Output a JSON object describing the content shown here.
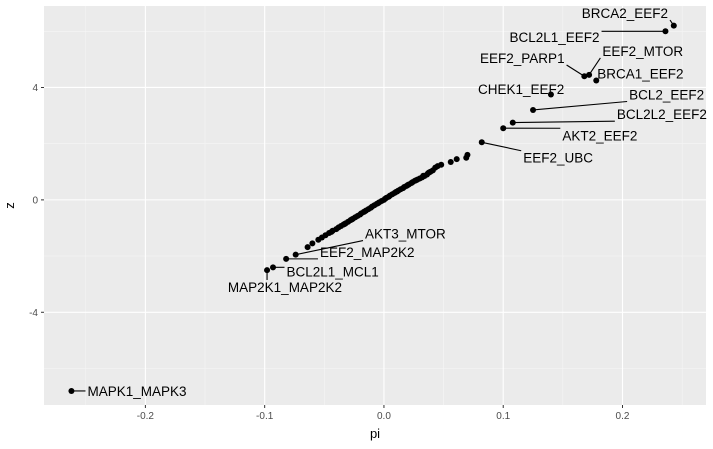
{
  "chart_data": {
    "type": "scatter",
    "xlabel": "pi",
    "ylabel": "z",
    "xlim": [
      -0.285,
      0.27
    ],
    "ylim": [
      -7.3,
      6.9
    ],
    "x_ticks": [
      {
        "value": -0.2,
        "label": "-0.2"
      },
      {
        "value": -0.1,
        "label": "-0.1"
      },
      {
        "value": 0.0,
        "label": "0.0"
      },
      {
        "value": 0.1,
        "label": "0.1"
      },
      {
        "value": 0.2,
        "label": "0.2"
      }
    ],
    "y_ticks": [
      {
        "value": -4,
        "label": "-4"
      },
      {
        "value": 0,
        "label": "0"
      },
      {
        "value": 4,
        "label": "4"
      }
    ],
    "grid": true,
    "colors": {
      "panel": "#ebebeb",
      "grid_major": "#ffffff",
      "grid_minor": "#f5f5f5",
      "point": "#000000"
    },
    "labeled_points": [
      {
        "name": "BRCA2_EEF2",
        "x": 0.243,
        "y": 6.2,
        "lx": 0.202,
        "ly": 6.65
      },
      {
        "name": "BCL2L1_EEF2",
        "x": 0.236,
        "y": 6.0,
        "lx": 0.143,
        "ly": 5.8
      },
      {
        "name": "EEF2_MTOR",
        "x": 0.172,
        "y": 4.45,
        "lx": 0.217,
        "ly": 5.3
      },
      {
        "name": "EEF2_PARP1",
        "x": 0.168,
        "y": 4.4,
        "lx": 0.116,
        "ly": 5.05
      },
      {
        "name": "BRCA1_EEF2",
        "x": 0.178,
        "y": 4.25,
        "lx": 0.215,
        "ly": 4.5
      },
      {
        "name": "CHEK1_EEF2",
        "x": 0.14,
        "y": 3.75,
        "lx": 0.115,
        "ly": 3.95
      },
      {
        "name": "BCL2_EEF2",
        "x": 0.125,
        "y": 3.2,
        "lx": 0.237,
        "ly": 3.75
      },
      {
        "name": "BCL2L2_EEF2",
        "x": 0.108,
        "y": 2.75,
        "lx": 0.233,
        "ly": 3.05
      },
      {
        "name": "AKT2_EEF2",
        "x": 0.1,
        "y": 2.55,
        "lx": 0.181,
        "ly": 2.3
      },
      {
        "name": "EEF2_UBC",
        "x": 0.082,
        "y": 2.05,
        "lx": 0.146,
        "ly": 1.5
      },
      {
        "name": "AKT3_MTOR",
        "x": -0.074,
        "y": -1.95,
        "lx": 0.018,
        "ly": -1.2
      },
      {
        "name": "EEF2_MAP2K2",
        "x": -0.082,
        "y": -2.1,
        "lx": -0.014,
        "ly": -1.85
      },
      {
        "name": "BCL2L1_MCL1",
        "x": -0.093,
        "y": -2.4,
        "lx": -0.043,
        "ly": -2.55
      },
      {
        "name": "MAP2K1_MAP2K2",
        "x": -0.098,
        "y": -2.5,
        "lx": -0.083,
        "ly": -3.1
      },
      {
        "name": "MAPK1_MAPK3",
        "x": -0.262,
        "y": -6.8,
        "lx": -0.207,
        "ly": -6.8
      }
    ],
    "points": [
      [
        0.07,
        1.6
      ],
      [
        0.069,
        1.5
      ],
      [
        0.061,
        1.45
      ],
      [
        0.056,
        1.35
      ],
      [
        0.048,
        1.25
      ],
      [
        0.045,
        1.2
      ],
      [
        0.043,
        1.15
      ],
      [
        0.041,
        1.05
      ],
      [
        0.039,
        1.0
      ],
      [
        0.037,
        0.95
      ],
      [
        0.036,
        0.9
      ],
      [
        0.034,
        0.85
      ],
      [
        0.032,
        0.8
      ],
      [
        0.03,
        0.76
      ],
      [
        0.028,
        0.72
      ],
      [
        0.026,
        0.68
      ],
      [
        0.024,
        0.63
      ],
      [
        0.023,
        0.6
      ],
      [
        0.021,
        0.55
      ],
      [
        0.019,
        0.5
      ],
      [
        0.017,
        0.46
      ],
      [
        0.016,
        0.42
      ],
      [
        0.014,
        0.38
      ],
      [
        0.012,
        0.33
      ],
      [
        0.01,
        0.28
      ],
      [
        0.009,
        0.25
      ],
      [
        0.007,
        0.2
      ],
      [
        0.005,
        0.15
      ],
      [
        0.004,
        0.11
      ],
      [
        0.002,
        0.07
      ],
      [
        0.001,
        0.04
      ],
      [
        0.0,
        0.0
      ],
      [
        -0.002,
        -0.04
      ],
      [
        -0.004,
        -0.09
      ],
      [
        -0.006,
        -0.14
      ],
      [
        -0.008,
        -0.19
      ],
      [
        -0.01,
        -0.24
      ],
      [
        -0.011,
        -0.28
      ],
      [
        -0.013,
        -0.33
      ],
      [
        -0.015,
        -0.38
      ],
      [
        -0.017,
        -0.43
      ],
      [
        -0.019,
        -0.48
      ],
      [
        -0.02,
        -0.52
      ],
      [
        -0.022,
        -0.57
      ],
      [
        -0.024,
        -0.62
      ],
      [
        -0.026,
        -0.67
      ],
      [
        -0.028,
        -0.72
      ],
      [
        -0.03,
        -0.78
      ],
      [
        -0.032,
        -0.83
      ],
      [
        -0.034,
        -0.88
      ],
      [
        -0.036,
        -0.93
      ],
      [
        -0.038,
        -0.98
      ],
      [
        -0.04,
        -1.04
      ],
      [
        -0.043,
        -1.1
      ],
      [
        -0.046,
        -1.18
      ],
      [
        -0.049,
        -1.26
      ],
      [
        -0.052,
        -1.34
      ],
      [
        -0.055,
        -1.42
      ],
      [
        -0.06,
        -1.55
      ],
      [
        -0.064,
        -1.68
      ],
      [
        0.02,
        0.53
      ],
      [
        0.011,
        0.3
      ],
      [
        -0.005,
        -0.12
      ],
      [
        -0.016,
        -0.41
      ],
      [
        -0.027,
        -0.7
      ],
      [
        -0.033,
        -0.86
      ],
      [
        0.033,
        0.86
      ],
      [
        0.027,
        0.7
      ],
      [
        -0.044,
        -1.14
      ],
      [
        0.038,
        0.98
      ]
    ]
  }
}
